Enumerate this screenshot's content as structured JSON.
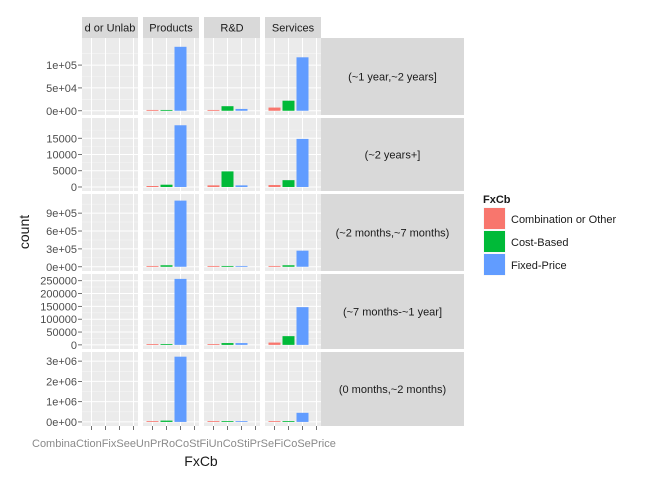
{
  "chart_data": {
    "type": "bar",
    "xlabel": "FxCb",
    "ylabel": "count",
    "legend": {
      "title": "FxCb",
      "position": "right",
      "entries": [
        {
          "label": "Combination or Other",
          "color": "#F8766D"
        },
        {
          "label": "Cost-Based",
          "color": "#00BA38"
        },
        {
          "label": "Fixed-Price",
          "color": "#619CFF"
        }
      ]
    },
    "facet_columns": [
      "d or Unlab",
      "Products",
      "R&D",
      "Services"
    ],
    "x_tick_labels": [
      "Combination or Other",
      "Cost-Based",
      "Fixed-Price",
      "Unlabeled"
    ],
    "x_tick_label_row": "CombinaCtionFixSeeUnPrRoCoStFiUnCoStiPrSeFiCoSePrice",
    "rows": [
      {
        "label": "(~1 year,~2 years]",
        "ylim": [
          0,
          150000
        ],
        "ticks": [
          {
            "value": 0,
            "label": "0e+00"
          },
          {
            "value": 50000,
            "label": "5e+04"
          },
          {
            "value": 100000,
            "label": "1e+05"
          }
        ],
        "panels": [
          [
            0,
            0,
            0
          ],
          [
            1500,
            1500,
            140000
          ],
          [
            1500,
            10000,
            4000
          ],
          [
            7000,
            22000,
            117000
          ]
        ]
      },
      {
        "label": "(~2 years+]",
        "ylim": [
          0,
          20000
        ],
        "ticks": [
          {
            "value": 0,
            "label": "0"
          },
          {
            "value": 5000,
            "label": "5000"
          },
          {
            "value": 10000,
            "label": "10000"
          },
          {
            "value": 15000,
            "label": "15000"
          }
        ],
        "panels": [
          [
            0,
            0,
            0
          ],
          [
            300,
            700,
            19000
          ],
          [
            500,
            4800,
            500
          ],
          [
            600,
            2100,
            14800
          ]
        ]
      },
      {
        "label": "(~2 months,~7 months)",
        "ylim": [
          0,
          1150000
        ],
        "ticks": [
          {
            "value": 0,
            "label": "0e+00"
          },
          {
            "value": 300000,
            "label": "3e+05"
          },
          {
            "value": 600000,
            "label": "6e+05"
          },
          {
            "value": 900000,
            "label": "9e+05"
          }
        ],
        "panels": [
          [
            0,
            0,
            0
          ],
          [
            8000,
            25000,
            1110000
          ],
          [
            1000,
            8000,
            5000
          ],
          [
            3000,
            25000,
            270000
          ]
        ]
      },
      {
        "label": "(~7 months-~1 year]",
        "ylim": [
          0,
          260000
        ],
        "ticks": [
          {
            "value": 0,
            "label": "0"
          },
          {
            "value": 50000,
            "label": "50000"
          },
          {
            "value": 100000,
            "label": "100000"
          },
          {
            "value": 150000,
            "label": "150000"
          },
          {
            "value": 200000,
            "label": "200000"
          },
          {
            "value": 250000,
            "label": "250000"
          }
        ],
        "panels": [
          [
            0,
            0,
            0
          ],
          [
            3000,
            3000,
            257000
          ],
          [
            1000,
            7000,
            7000
          ],
          [
            9000,
            34000,
            147000
          ]
        ]
      },
      {
        "label": "(0 months,~2 months)",
        "ylim": [
          0,
          3250000
        ],
        "ticks": [
          {
            "value": 0,
            "label": "0e+00"
          },
          {
            "value": 1000000,
            "label": "1e+06"
          },
          {
            "value": 2000000,
            "label": "2e+06"
          },
          {
            "value": 3000000,
            "label": "3e+06"
          }
        ],
        "panels": [
          [
            0,
            0,
            0
          ],
          [
            25000,
            65000,
            3220000
          ],
          [
            5000,
            15000,
            8000
          ],
          [
            25000,
            40000,
            450000
          ]
        ]
      }
    ]
  }
}
